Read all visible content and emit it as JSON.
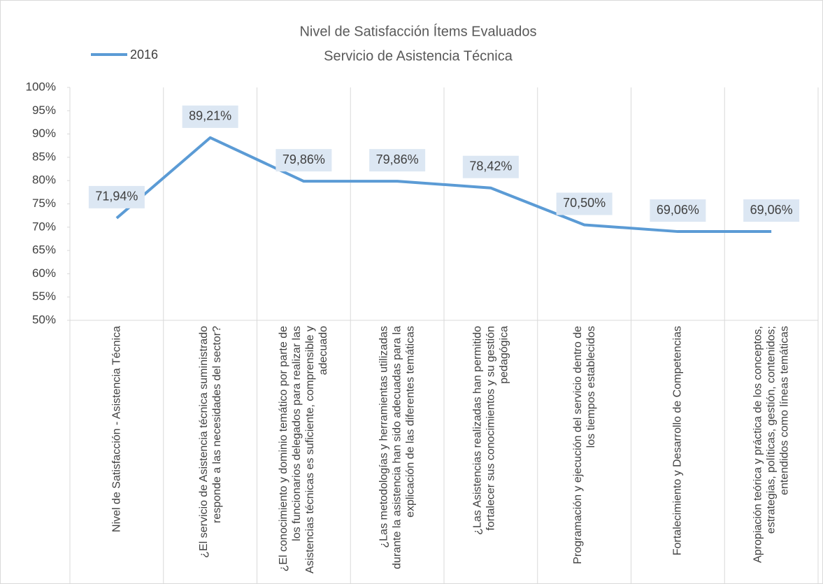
{
  "chart_data": {
    "type": "line",
    "title": "Nivel de Satisfacción Ítems Evaluados",
    "subtitle": "Servicio de Asistencia Técnica",
    "categories": [
      "Nivel de Satisfacción - Asistencia Técnica",
      "¿El servicio de Asistencia técnica suministrado responde a las necesidades del sector?",
      "¿El conocimiento y dominio temático por parte de los funcionarios delegados para realizar las Asistencias técnicas es suficiente, comprensible y adecuado",
      "¿Las metodologías y herramientas utilizadas durante la asistencia han sido adecuadas para la explicación de las diferentes temáticas",
      "¿Las Asistencias realizadas han permitido fortalecer sus conocimientos y su gestión pedagógica",
      "Programación y ejecución del servicio dentro de los tiempos establecidos",
      "Fortalecimiento y Desarrollo de Competencias",
      "Apropiación teórica y práctica de los conceptos, estrategias, políticas, gestión, contenidos; entendidos como líneas temáticas"
    ],
    "series": [
      {
        "name": "2016",
        "color": "#5b9bd5",
        "values": [
          71.94,
          89.21,
          79.86,
          79.86,
          78.42,
          70.5,
          69.06,
          69.06
        ],
        "value_labels": [
          "71,94%",
          "89,21%",
          "79,86%",
          "79,86%",
          "78,42%",
          "70,50%",
          "69,06%",
          "69,06%"
        ]
      }
    ],
    "ylim": [
      50,
      100
    ],
    "yticks": [
      {
        "value": 50,
        "label": "50%"
      },
      {
        "value": 55,
        "label": "55%"
      },
      {
        "value": 60,
        "label": "60%"
      },
      {
        "value": 65,
        "label": "65%"
      },
      {
        "value": 70,
        "label": "70%"
      },
      {
        "value": 75,
        "label": "75%"
      },
      {
        "value": 80,
        "label": "80%"
      },
      {
        "value": 85,
        "label": "85%"
      },
      {
        "value": 90,
        "label": "90%"
      },
      {
        "value": 95,
        "label": "95%"
      },
      {
        "value": 100,
        "label": "100%"
      }
    ],
    "legend": "top-left"
  }
}
